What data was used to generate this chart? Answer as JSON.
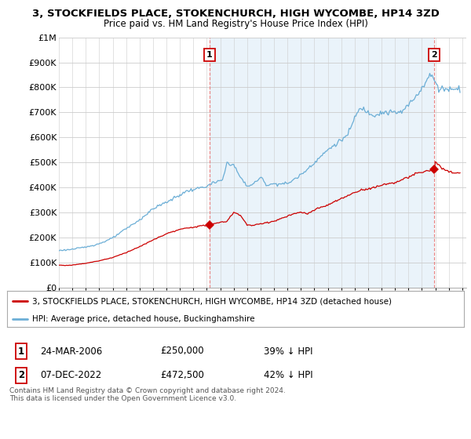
{
  "title": "3, STOCKFIELDS PLACE, STOKENCHURCH, HIGH WYCOMBE, HP14 3ZD",
  "subtitle": "Price paid vs. HM Land Registry's House Price Index (HPI)",
  "xlim_start": 1995.0,
  "xlim_end": 2025.3,
  "ylim": [
    0,
    1000000
  ],
  "yticks": [
    0,
    100000,
    200000,
    300000,
    400000,
    500000,
    600000,
    700000,
    800000,
    900000,
    1000000
  ],
  "ytick_labels": [
    "£0",
    "£100K",
    "£200K",
    "£300K",
    "£400K",
    "£500K",
    "£600K",
    "£700K",
    "£800K",
    "£900K",
    "£1M"
  ],
  "hpi_color": "#6baed6",
  "hpi_fill_color": "#d6e8f7",
  "price_color": "#cc0000",
  "vline_color": "#e88080",
  "transaction1_date": 2006.21,
  "transaction1_price": 250000,
  "transaction1_label": "1",
  "transaction2_date": 2022.92,
  "transaction2_price": 472500,
  "transaction2_label": "2",
  "legend_label_price": "3, STOCKFIELDS PLACE, STOKENCHURCH, HIGH WYCOMBE, HP14 3ZD (detached house)",
  "legend_label_hpi": "HPI: Average price, detached house, Buckinghamshire",
  "table_row1": [
    "1",
    "24-MAR-2006",
    "£250,000",
    "39% ↓ HPI"
  ],
  "table_row2": [
    "2",
    "07-DEC-2022",
    "£472,500",
    "42% ↓ HPI"
  ],
  "footnote": "Contains HM Land Registry data © Crown copyright and database right 2024.\nThis data is licensed under the Open Government Licence v3.0.",
  "background_color": "#ffffff",
  "grid_color": "#cccccc",
  "hpi_anchors": {
    "1995.0": 148000,
    "1996.0": 153000,
    "1997.0": 162000,
    "1998.0": 175000,
    "1999.0": 198000,
    "2000.0": 235000,
    "2001.0": 270000,
    "2002.0": 315000,
    "2003.5": 355000,
    "2004.5": 385000,
    "2005.5": 398000,
    "2006.0": 405000,
    "2006.5": 418000,
    "2007.2": 430000,
    "2007.5": 500000,
    "2008.0": 490000,
    "2008.5": 440000,
    "2009.0": 405000,
    "2009.5": 415000,
    "2010.0": 440000,
    "2010.5": 410000,
    "2011.0": 415000,
    "2011.5": 415000,
    "2012.0": 415000,
    "2013.0": 450000,
    "2014.0": 500000,
    "2015.0": 550000,
    "2016.0": 590000,
    "2016.5": 610000,
    "2017.0": 680000,
    "2017.5": 720000,
    "2018.0": 700000,
    "2018.5": 690000,
    "2019.0": 700000,
    "2019.5": 700000,
    "2020.0": 700000,
    "2020.5": 700000,
    "2021.0": 730000,
    "2021.5": 760000,
    "2022.0": 800000,
    "2022.5": 840000,
    "2022.75": 850000,
    "2023.0": 820000,
    "2023.25": 790000,
    "2023.5": 800000,
    "2024.0": 790000,
    "2024.5": 800000,
    "2024.9": 790000
  },
  "price_anchors": {
    "1995.0": 90000,
    "1995.5": 88000,
    "1996.0": 90000,
    "1997.0": 97000,
    "1998.0": 107000,
    "1999.0": 120000,
    "2000.0": 140000,
    "2001.0": 163000,
    "2002.0": 190000,
    "2003.0": 215000,
    "2004.0": 232000,
    "2005.0": 242000,
    "2006.21": 250000,
    "2006.5": 255000,
    "2007.0": 260000,
    "2007.5": 265000,
    "2008.0": 300000,
    "2008.5": 290000,
    "2009.0": 250000,
    "2009.5": 248000,
    "2010.0": 255000,
    "2011.0": 265000,
    "2012.0": 285000,
    "2012.5": 295000,
    "2013.0": 300000,
    "2013.5": 295000,
    "2014.0": 310000,
    "2015.0": 330000,
    "2016.0": 355000,
    "2017.0": 380000,
    "2017.5": 390000,
    "2018.0": 395000,
    "2018.5": 400000,
    "2019.0": 410000,
    "2019.5": 415000,
    "2020.0": 420000,
    "2020.5": 430000,
    "2021.0": 440000,
    "2021.5": 455000,
    "2022.0": 460000,
    "2022.5": 468000,
    "2022.92": 472500,
    "2023.0": 500000,
    "2023.25": 490000,
    "2023.5": 475000,
    "2024.0": 462000,
    "2024.5": 458000,
    "2024.9": 460000
  }
}
